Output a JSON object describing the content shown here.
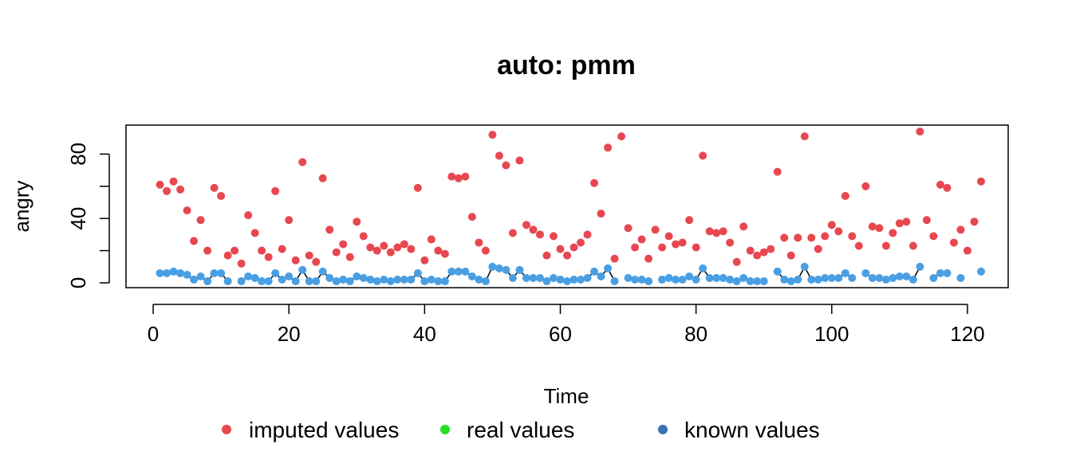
{
  "chart_data": {
    "type": "scatter",
    "title": "auto: pmm",
    "xlabel": "Time",
    "ylabel": "angry",
    "xlim": [
      -4,
      126
    ],
    "ylim": [
      -3,
      98
    ],
    "xticks": [
      0,
      20,
      40,
      60,
      80,
      100,
      120
    ],
    "yticks": [
      0,
      20,
      40,
      60,
      80
    ],
    "ytick_labels": [
      "0",
      "",
      "40",
      "",
      "80"
    ],
    "grid": false,
    "legend_position": "bottom",
    "legend": [
      {
        "label": "imputed values",
        "color": "#e8474f"
      },
      {
        "label": "real values",
        "color": "#22e022"
      },
      {
        "label": "known values",
        "color": "#3b73b4"
      }
    ],
    "series": [
      {
        "name": "imputed values",
        "color": "#e8474f",
        "points": [
          [
            1,
            61
          ],
          [
            2,
            57
          ],
          [
            3,
            63
          ],
          [
            4,
            58
          ],
          [
            5,
            45
          ],
          [
            6,
            26
          ],
          [
            7,
            39
          ],
          [
            8,
            20
          ],
          [
            9,
            59
          ],
          [
            10,
            54
          ],
          [
            11,
            17
          ],
          [
            12,
            20
          ],
          [
            13,
            12
          ],
          [
            14,
            42
          ],
          [
            15,
            31
          ],
          [
            16,
            20
          ],
          [
            17,
            16
          ],
          [
            18,
            57
          ],
          [
            19,
            21
          ],
          [
            20,
            39
          ],
          [
            21,
            14
          ],
          [
            22,
            75
          ],
          [
            23,
            17
          ],
          [
            24,
            13
          ],
          [
            25,
            65
          ],
          [
            26,
            33
          ],
          [
            27,
            19
          ],
          [
            28,
            24
          ],
          [
            29,
            16
          ],
          [
            30,
            38
          ],
          [
            31,
            29
          ],
          [
            32,
            22
          ],
          [
            33,
            20
          ],
          [
            34,
            23
          ],
          [
            35,
            19
          ],
          [
            36,
            22
          ],
          [
            37,
            24
          ],
          [
            38,
            21
          ],
          [
            39,
            59
          ],
          [
            40,
            14
          ],
          [
            41,
            27
          ],
          [
            42,
            20
          ],
          [
            43,
            18
          ],
          [
            44,
            66
          ],
          [
            45,
            65
          ],
          [
            46,
            66
          ],
          [
            47,
            41
          ],
          [
            48,
            25
          ],
          [
            49,
            20
          ],
          [
            50,
            92
          ],
          [
            51,
            79
          ],
          [
            52,
            73
          ],
          [
            53,
            31
          ],
          [
            54,
            76
          ],
          [
            55,
            36
          ],
          [
            56,
            33
          ],
          [
            57,
            30
          ],
          [
            58,
            17
          ],
          [
            59,
            29
          ],
          [
            60,
            21
          ],
          [
            61,
            17
          ],
          [
            62,
            22
          ],
          [
            63,
            25
          ],
          [
            64,
            30
          ],
          [
            65,
            62
          ],
          [
            66,
            43
          ],
          [
            67,
            84
          ],
          [
            68,
            15
          ],
          [
            69,
            91
          ],
          [
            70,
            34
          ],
          [
            71,
            22
          ],
          [
            72,
            27
          ],
          [
            73,
            15
          ],
          [
            74,
            33
          ],
          [
            75,
            22
          ],
          [
            76,
            29
          ],
          [
            77,
            24
          ],
          [
            78,
            25
          ],
          [
            79,
            39
          ],
          [
            80,
            22
          ],
          [
            81,
            79
          ],
          [
            82,
            32
          ],
          [
            83,
            31
          ],
          [
            84,
            32
          ],
          [
            85,
            25
          ],
          [
            86,
            13
          ],
          [
            87,
            35
          ],
          [
            88,
            20
          ],
          [
            89,
            17
          ],
          [
            90,
            19
          ],
          [
            91,
            21
          ],
          [
            92,
            69
          ],
          [
            93,
            28
          ],
          [
            94,
            17
          ],
          [
            95,
            28
          ],
          [
            96,
            91
          ],
          [
            97,
            28
          ],
          [
            98,
            21
          ],
          [
            99,
            29
          ],
          [
            100,
            36
          ],
          [
            101,
            32
          ],
          [
            102,
            54
          ],
          [
            103,
            29
          ],
          [
            104,
            23
          ],
          [
            105,
            60
          ],
          [
            106,
            35
          ],
          [
            107,
            34
          ],
          [
            108,
            23
          ],
          [
            109,
            31
          ],
          [
            110,
            37
          ],
          [
            111,
            38
          ],
          [
            112,
            23
          ],
          [
            113,
            94
          ],
          [
            114,
            39
          ],
          [
            115,
            29
          ],
          [
            116,
            61
          ],
          [
            117,
            59
          ],
          [
            118,
            25
          ],
          [
            119,
            33
          ],
          [
            120,
            20
          ],
          [
            121,
            38
          ],
          [
            122,
            63
          ]
        ]
      },
      {
        "name": "known values",
        "color": "#4a9fe3",
        "line_color": "#000000",
        "points": [
          [
            1,
            6
          ],
          [
            2,
            6
          ],
          [
            3,
            7
          ],
          [
            4,
            6
          ],
          [
            5,
            5
          ],
          [
            6,
            2
          ],
          [
            7,
            4
          ],
          [
            8,
            1
          ],
          [
            9,
            6
          ],
          [
            10,
            6
          ],
          [
            11,
            1
          ],
          [
            12,
            null
          ],
          [
            13,
            1
          ],
          [
            14,
            4
          ],
          [
            15,
            3
          ],
          [
            16,
            1
          ],
          [
            17,
            1
          ],
          [
            18,
            6
          ],
          [
            19,
            2
          ],
          [
            20,
            4
          ],
          [
            21,
            1
          ],
          [
            22,
            8
          ],
          [
            23,
            1
          ],
          [
            24,
            1
          ],
          [
            25,
            7
          ],
          [
            26,
            3
          ],
          [
            27,
            1
          ],
          [
            28,
            2
          ],
          [
            29,
            1
          ],
          [
            30,
            4
          ],
          [
            31,
            3
          ],
          [
            32,
            2
          ],
          [
            33,
            1
          ],
          [
            34,
            2
          ],
          [
            35,
            1
          ],
          [
            36,
            2
          ],
          [
            37,
            2
          ],
          [
            38,
            2
          ],
          [
            39,
            6
          ],
          [
            40,
            1
          ],
          [
            41,
            2
          ],
          [
            42,
            1
          ],
          [
            43,
            1
          ],
          [
            44,
            7
          ],
          [
            45,
            7
          ],
          [
            46,
            7
          ],
          [
            47,
            4
          ],
          [
            48,
            2
          ],
          [
            49,
            1
          ],
          [
            50,
            10
          ],
          [
            51,
            9
          ],
          [
            52,
            8
          ],
          [
            53,
            3
          ],
          [
            54,
            8
          ],
          [
            55,
            3
          ],
          [
            56,
            3
          ],
          [
            57,
            3
          ],
          [
            58,
            1
          ],
          [
            59,
            3
          ],
          [
            60,
            2
          ],
          [
            61,
            1
          ],
          [
            62,
            2
          ],
          [
            63,
            2
          ],
          [
            64,
            3
          ],
          [
            65,
            7
          ],
          [
            66,
            4
          ],
          [
            67,
            9
          ],
          [
            68,
            1
          ],
          [
            69,
            null
          ],
          [
            70,
            3
          ],
          [
            71,
            2
          ],
          [
            72,
            2
          ],
          [
            73,
            1
          ],
          [
            74,
            null
          ],
          [
            75,
            2
          ],
          [
            76,
            3
          ],
          [
            77,
            2
          ],
          [
            78,
            2
          ],
          [
            79,
            4
          ],
          [
            80,
            2
          ],
          [
            81,
            9
          ],
          [
            82,
            3
          ],
          [
            83,
            3
          ],
          [
            84,
            3
          ],
          [
            85,
            2
          ],
          [
            86,
            1
          ],
          [
            87,
            3
          ],
          [
            88,
            1
          ],
          [
            89,
            1
          ],
          [
            90,
            1
          ],
          [
            91,
            null
          ],
          [
            92,
            7
          ],
          [
            93,
            2
          ],
          [
            94,
            1
          ],
          [
            95,
            2
          ],
          [
            96,
            10
          ],
          [
            97,
            2
          ],
          [
            98,
            2
          ],
          [
            99,
            3
          ],
          [
            100,
            3
          ],
          [
            101,
            3
          ],
          [
            102,
            6
          ],
          [
            103,
            3
          ],
          [
            104,
            null
          ],
          [
            105,
            6
          ],
          [
            106,
            3
          ],
          [
            107,
            3
          ],
          [
            108,
            2
          ],
          [
            109,
            3
          ],
          [
            110,
            4
          ],
          [
            111,
            4
          ],
          [
            112,
            2
          ],
          [
            113,
            10
          ],
          [
            114,
            null
          ],
          [
            115,
            3
          ],
          [
            116,
            6
          ],
          [
            117,
            6
          ],
          [
            118,
            null
          ],
          [
            119,
            3
          ],
          [
            120,
            null
          ],
          [
            121,
            null
          ],
          [
            122,
            7
          ]
        ]
      }
    ]
  }
}
